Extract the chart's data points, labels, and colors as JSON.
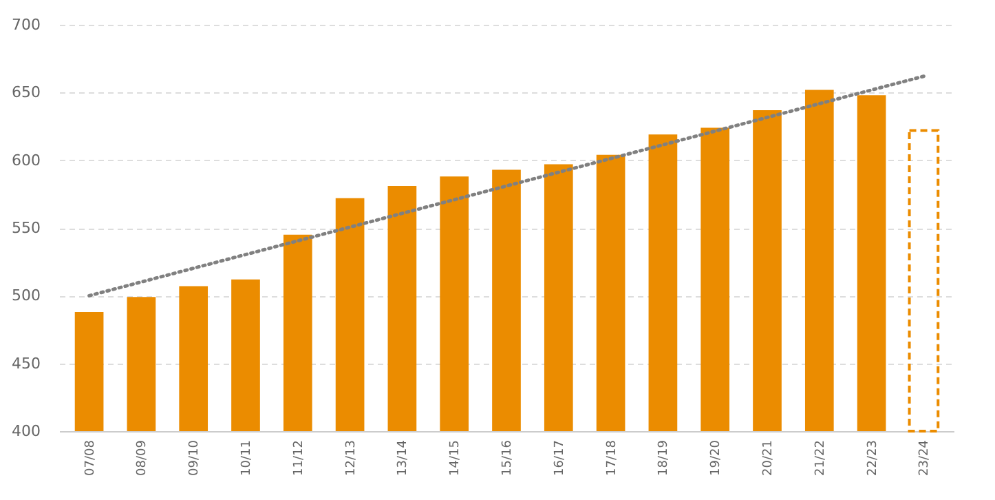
{
  "chart_data": {
    "type": "bar",
    "categories": [
      "07/08",
      "08/09",
      "09/10",
      "10/11",
      "11/12",
      "12/13",
      "13/14",
      "14/15",
      "15/16",
      "16/17",
      "17/18",
      "18/19",
      "19/20",
      "20/21",
      "21/22",
      "22/23",
      "23/24"
    ],
    "series": [
      {
        "color": "#eb8c00",
        "values": [
          488,
          499,
          507,
          512,
          545,
          572,
          581,
          588,
          593,
          597,
          604,
          619,
          624,
          637,
          652,
          648,
          null
        ]
      },
      {
        "color": "#eb8c00",
        "line_style": "dashed",
        "values": [
          null,
          null,
          null,
          null,
          null,
          null,
          null,
          null,
          null,
          null,
          null,
          null,
          null,
          null,
          null,
          null,
          622
        ]
      },
      {
        "type": "line",
        "color": "#808080",
        "line_style": "dotted",
        "x": [
          "07/08",
          "23/24"
        ],
        "values": [
          500,
          662
        ]
      }
    ],
    "ylim": [
      400,
      700
    ],
    "yticks": [
      400,
      450,
      500,
      550,
      600,
      650,
      700
    ],
    "grid": "y"
  }
}
